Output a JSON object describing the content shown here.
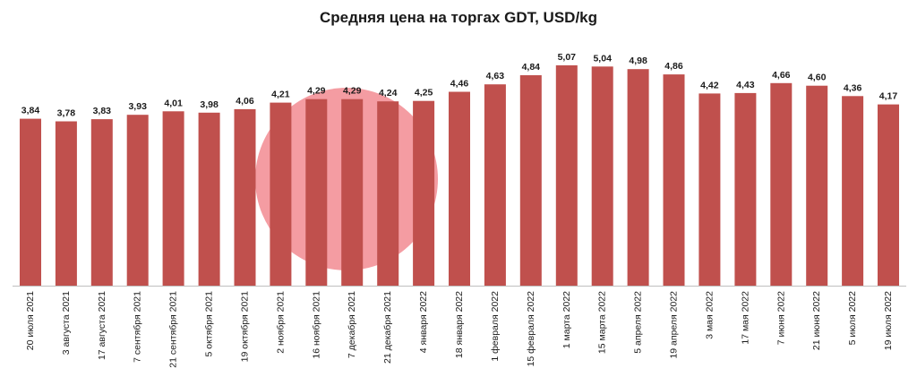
{
  "chart_data": {
    "type": "bar",
    "title": "Средняя цена на торгах GDT, USD/kg",
    "xlabel": "",
    "ylabel": "",
    "ylim": [
      0,
      5.5
    ],
    "grid": false,
    "legend": "none",
    "bar_color": "#c0504d",
    "watermark_color": "#f28b92",
    "categories": [
      "20 июля 2021",
      "3 августа 2021",
      "17 августа 2021",
      "7 сентября 2021",
      "21 сентября 2021",
      "5 октября 2021",
      "19 октября 2021",
      "2 ноября 2021",
      "16 ноября 2021",
      "7 декабря 2021",
      "21 декабря 2021",
      "4 января 2022",
      "18 января 2022",
      "1 февраля 2022",
      "15 февраля 2022",
      "1 марта 2022",
      "15 марта 2022",
      "5 апреля 2022",
      "19 апреля 2022",
      "3 мая 2022",
      "17 мая 2022",
      "7 июня 2022",
      "21 июня 2022",
      "5 июля 2022",
      "19 июля 2022"
    ],
    "values": [
      3.84,
      3.78,
      3.83,
      3.93,
      4.01,
      3.98,
      4.06,
      4.21,
      4.29,
      4.29,
      4.24,
      4.25,
      4.46,
      4.63,
      4.84,
      5.07,
      5.04,
      4.98,
      4.86,
      4.42,
      4.43,
      4.66,
      4.6,
      4.36,
      4.17
    ],
    "value_labels": [
      "3,84",
      "3,78",
      "3,83",
      "3,93",
      "4,01",
      "3,98",
      "4,06",
      "4,21",
      "4,29",
      "4,29",
      "4,24",
      "4,25",
      "4,46",
      "4,63",
      "4,84",
      "5,07",
      "5,04",
      "4,98",
      "4,86",
      "4,42",
      "4,43",
      "4,66",
      "4,60",
      "4,36",
      "4,17"
    ]
  }
}
